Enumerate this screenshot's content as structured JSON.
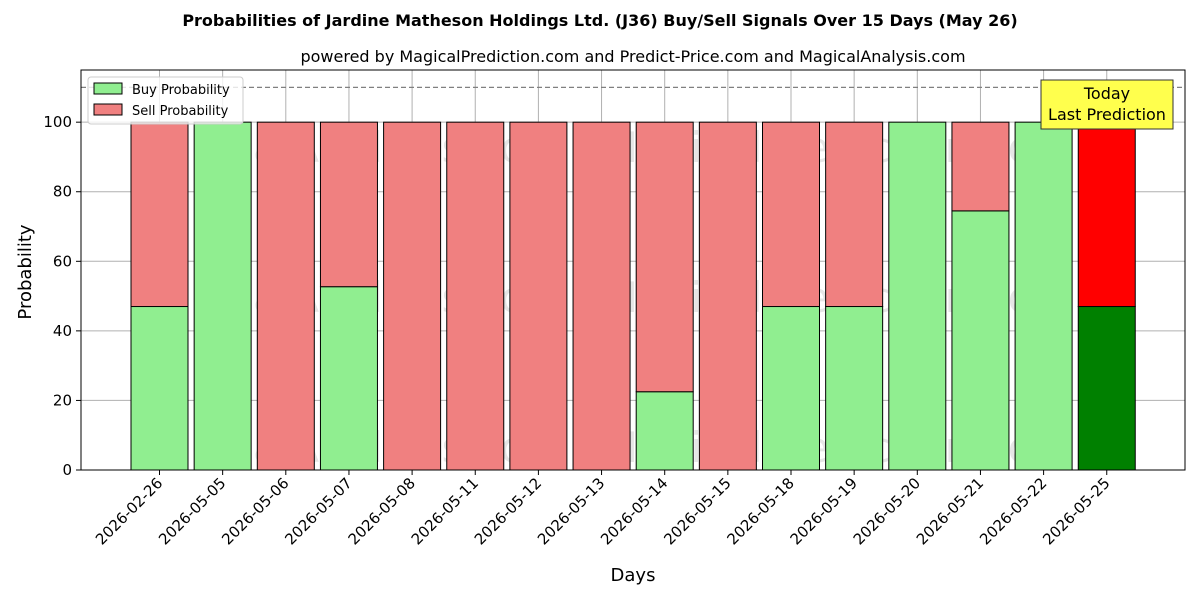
{
  "chart_data": {
    "type": "bar",
    "stacked": true,
    "title": "Probabilities of Jardine Matheson Holdings Ltd. (J36) Buy/Sell Signals Over 15 Days (May 26)",
    "subtitle": "powered by MagicalPrediction.com and Predict-Price.com and MagicalAnalysis.com",
    "xlabel": "Days",
    "ylabel": "Probability",
    "ylim": [
      0,
      115
    ],
    "yticks": [
      0,
      20,
      40,
      60,
      80,
      100
    ],
    "grid": true,
    "legend_position": "top-left",
    "reference_line": 110,
    "categories": [
      "2026-02-26",
      "2026-05-05",
      "2026-05-06",
      "2026-05-07",
      "2026-05-08",
      "2026-05-11",
      "2026-05-12",
      "2026-05-13",
      "2026-05-14",
      "2026-05-15",
      "2026-05-18",
      "2026-05-19",
      "2026-05-20",
      "2026-05-21",
      "2026-05-22",
      "2026-05-25"
    ],
    "series": [
      {
        "name": "Buy Probability",
        "color": "#90ee90",
        "highlight_color": "#008000",
        "values": [
          47,
          100,
          0,
          52.7,
          0,
          0,
          0,
          0,
          22.5,
          0,
          47,
          47,
          100,
          74.5,
          100,
          47
        ]
      },
      {
        "name": "Sell Probability",
        "color": "#f08080",
        "highlight_color": "#ff0000",
        "values": [
          53,
          0,
          100,
          47.3,
          100,
          100,
          100,
          100,
          77.5,
          100,
          53,
          53,
          0,
          25.5,
          0,
          53
        ]
      }
    ],
    "highlight_index": 15,
    "annotation": {
      "line1": "Today",
      "line2": "Last Prediction",
      "bg_color": "#ffff4d"
    },
    "watermarks": [
      "MagicalAnalysis.com",
      "MagicalPrediction.com"
    ]
  }
}
